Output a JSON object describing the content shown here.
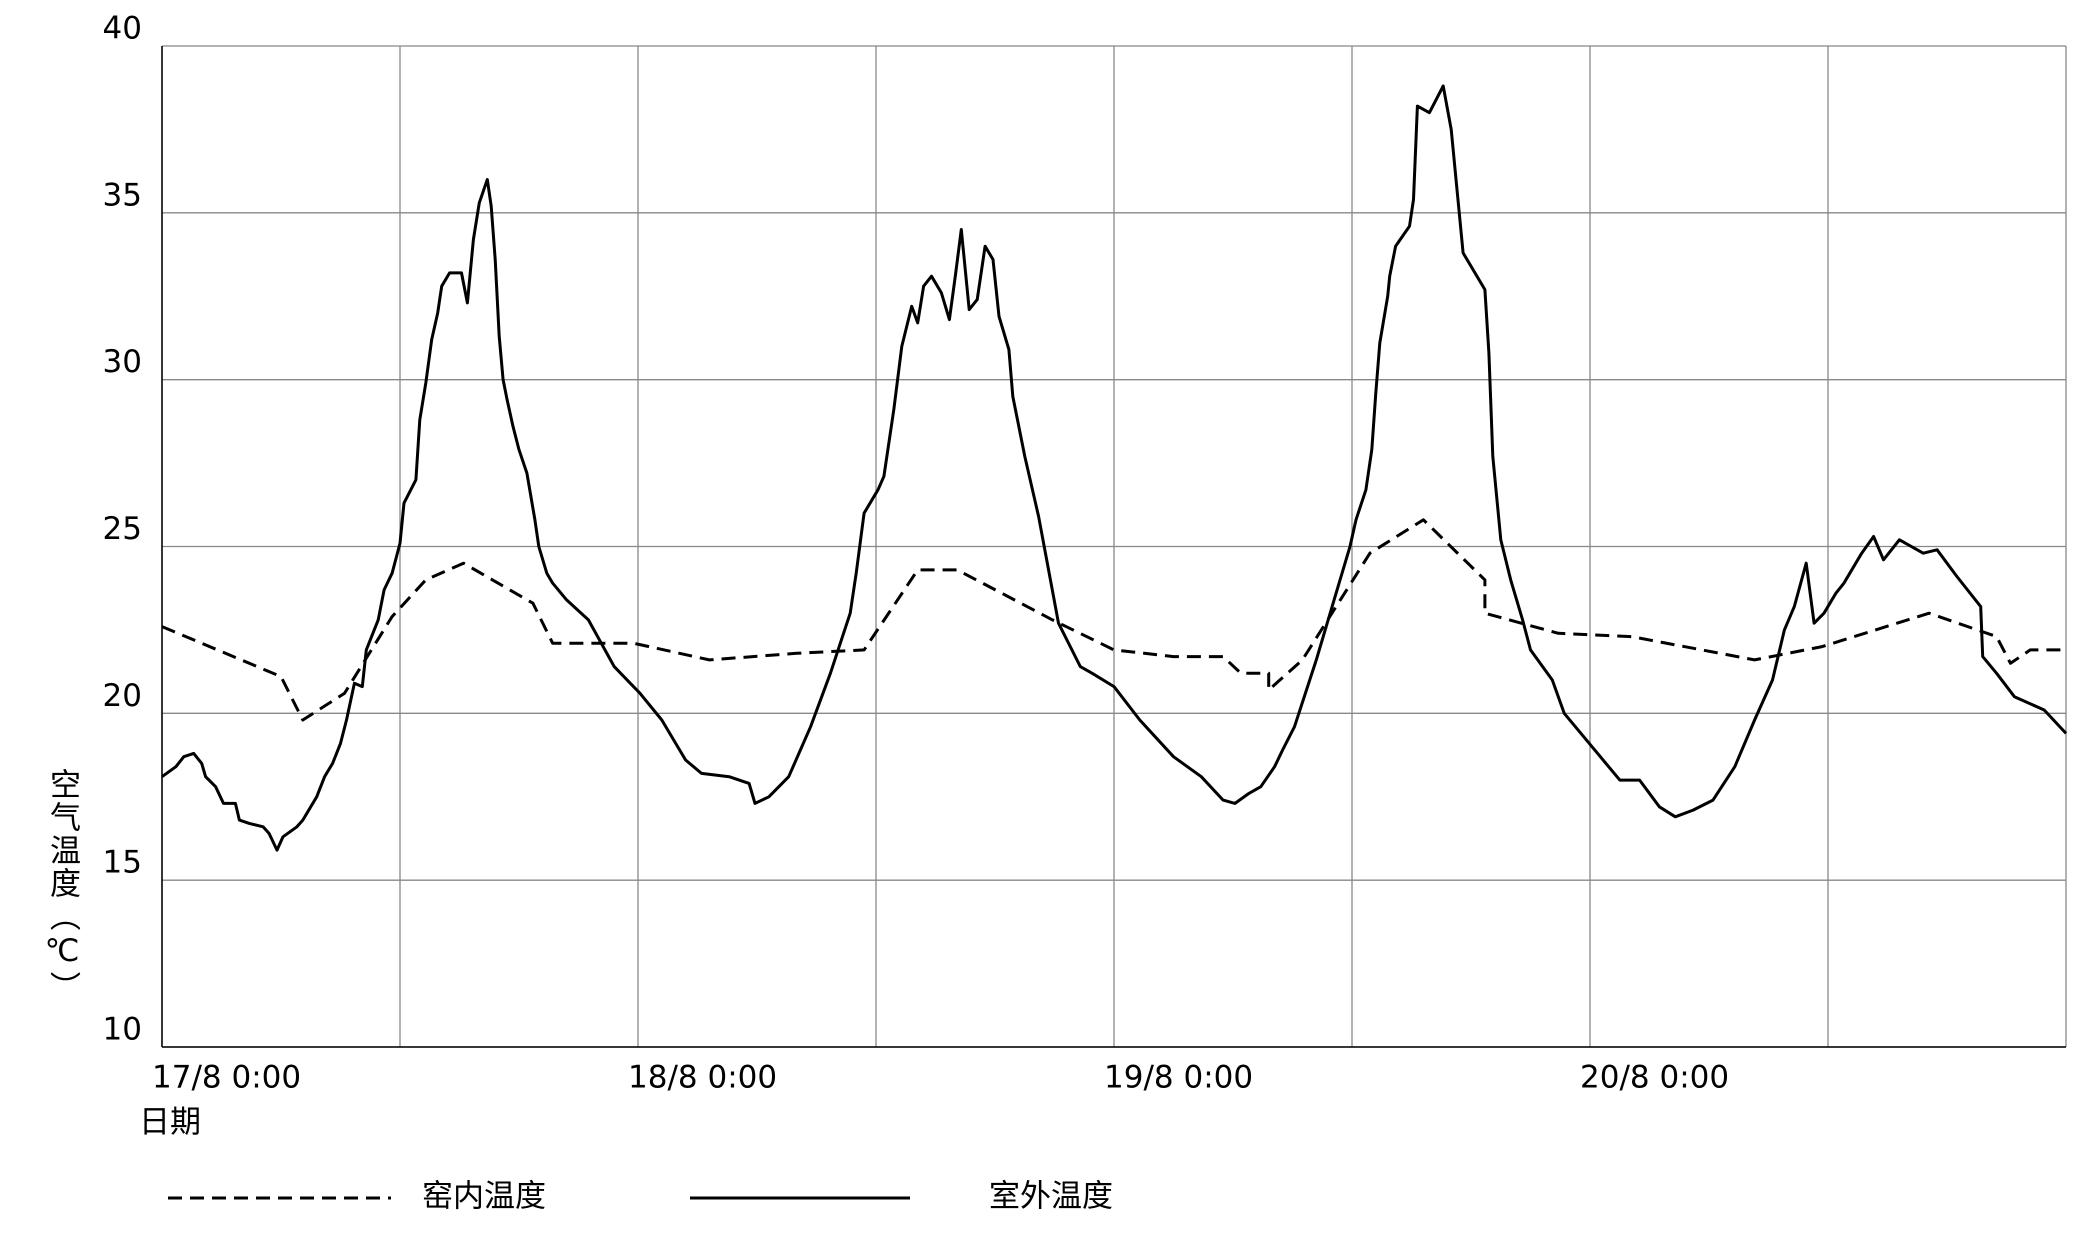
{
  "chart_data": {
    "type": "line",
    "x_label": "日期",
    "y_label": "空气温度（℃）",
    "xlim": [
      0,
      96
    ],
    "xticks": [
      {
        "value": 0,
        "label": "17/8 0:00"
      },
      {
        "value": 12,
        "label": null
      },
      {
        "value": 24,
        "label": "18/8 0:00"
      },
      {
        "value": 36,
        "label": null
      },
      {
        "value": 48,
        "label": "19/8 0:00"
      },
      {
        "value": 60,
        "label": null
      },
      {
        "value": 72,
        "label": "20/8 0:00"
      },
      {
        "value": 84,
        "label": null
      },
      {
        "value": 96,
        "label": null
      }
    ],
    "ylim": [
      10,
      40
    ],
    "yticks": [
      10,
      15,
      20,
      25,
      30,
      35,
      40
    ],
    "grid": true,
    "legend": "bottom",
    "series": [
      {
        "name": "窑内温度",
        "color": "#000000",
        "linestyle": "dashed",
        "x": [
          0,
          6.0,
          7.1,
          9.2,
          11.6,
          13.3,
          15.2,
          18.7,
          19.7,
          23.8,
          27.6,
          32.0,
          35.4,
          38.1,
          40.1,
          44.9,
          48.0,
          51.0,
          53.5,
          54.4,
          55.8,
          55.8,
          57.5,
          60.9,
          63.6,
          66.7,
          66.7,
          70.4,
          74.1,
          80.3,
          83.7,
          89.1,
          92.5,
          93.2,
          94.2,
          96.0
        ],
        "values": [
          22.6,
          21.1,
          19.8,
          20.6,
          22.9,
          24.0,
          24.5,
          23.3,
          22.1,
          22.1,
          21.6,
          21.8,
          21.9,
          24.3,
          24.3,
          22.8,
          21.9,
          21.7,
          21.7,
          21.2,
          21.2,
          20.7,
          21.6,
          24.8,
          25.8,
          24.0,
          23.0,
          22.4,
          22.3,
          21.6,
          22.0,
          23.0,
          22.3,
          21.5,
          21.9,
          21.9
        ]
      },
      {
        "name": "室外温度",
        "color": "#000000",
        "linestyle": "solid",
        "x": [
          0,
          0.7,
          1.1,
          1.6,
          2.0,
          2.2,
          2.7,
          3.1,
          3.7,
          3.9,
          4.4,
          5.1,
          5.4,
          5.8,
          6.1,
          6.8,
          7.1,
          7.8,
          8.2,
          8.6,
          9.0,
          9.3,
          9.7,
          10.1,
          10.3,
          10.9,
          11.2,
          11.6,
          12.0,
          12.2,
          12.8,
          13.0,
          13.3,
          13.6,
          13.9,
          14.1,
          14.5,
          15.1,
          15.4,
          15.7,
          16.0,
          16.4,
          16.6,
          16.8,
          17.0,
          17.2,
          17.4,
          17.7,
          18.0,
          18.4,
          18.8,
          19.0,
          19.4,
          19.7,
          20.4,
          21.5,
          22.8,
          24.1,
          25.2,
          26.4,
          27.2,
          28.6,
          29.6,
          29.9,
          30.6,
          31.6,
          32.7,
          33.7,
          34.7,
          35.0,
          35.4,
          36.1,
          36.4,
          36.9,
          37.3,
          37.8,
          38.1,
          38.4,
          38.8,
          39.3,
          39.7,
          40.0,
          40.3,
          40.7,
          41.1,
          41.5,
          41.9,
          42.2,
          42.7,
          42.9,
          43.5,
          44.2,
          45.2,
          46.3,
          46.9,
          48.0,
          49.3,
          51.0,
          52.4,
          53.5,
          54.1,
          54.8,
          55.4,
          56.1,
          56.5,
          57.1,
          58.2,
          59.2,
          59.9,
          60.2,
          60.7,
          61.0,
          61.2,
          61.4,
          61.8,
          61.9,
          62.2,
          62.9,
          63.1,
          63.3,
          63.9,
          64.6,
          65.0,
          65.6,
          66.7,
          66.9,
          67.1,
          67.5,
          68.0,
          68.6,
          69.0,
          70.1,
          70.7,
          72.1,
          73.5,
          74.5,
          75.5,
          76.3,
          77.2,
          78.2,
          79.3,
          80.3,
          81.2,
          81.8,
          82.3,
          82.9,
          83.3,
          83.8,
          84.4,
          84.8,
          85.7,
          86.3,
          86.8,
          87.6,
          88.8,
          89.5,
          90.5,
          91.7,
          91.8,
          92.5,
          93.4,
          94.9,
          96.0
        ],
        "values": [
          18.1,
          18.4,
          18.7,
          18.8,
          18.5,
          18.1,
          17.8,
          17.3,
          17.3,
          16.8,
          16.7,
          16.6,
          16.4,
          15.9,
          16.3,
          16.6,
          16.8,
          17.5,
          18.1,
          18.5,
          19.1,
          19.8,
          20.9,
          20.8,
          21.9,
          22.8,
          23.7,
          24.2,
          25.1,
          26.3,
          27.0,
          28.8,
          29.9,
          31.2,
          32.0,
          32.8,
          33.2,
          33.2,
          32.3,
          34.2,
          35.3,
          36.0,
          35.2,
          33.6,
          31.3,
          30.0,
          29.4,
          28.6,
          27.9,
          27.2,
          25.8,
          25.0,
          24.2,
          23.9,
          23.4,
          22.8,
          21.4,
          20.6,
          19.8,
          18.6,
          18.2,
          18.1,
          17.9,
          17.3,
          17.5,
          18.1,
          19.6,
          21.2,
          23.0,
          24.2,
          26.0,
          26.7,
          27.1,
          29.1,
          31.0,
          32.2,
          31.7,
          32.8,
          33.1,
          32.6,
          31.8,
          33.1,
          34.5,
          32.1,
          32.4,
          34.0,
          33.6,
          31.9,
          30.9,
          29.5,
          27.7,
          25.9,
          22.7,
          21.4,
          21.2,
          20.8,
          19.8,
          18.7,
          18.1,
          17.4,
          17.3,
          17.6,
          17.8,
          18.4,
          18.9,
          19.6,
          21.6,
          23.6,
          25.0,
          25.8,
          26.7,
          27.9,
          29.6,
          31.1,
          32.5,
          33.1,
          34.0,
          34.6,
          35.4,
          38.2,
          38.0,
          38.8,
          37.5,
          33.8,
          32.7,
          30.8,
          27.7,
          25.2,
          24.0,
          22.8,
          21.9,
          21.0,
          20.0,
          19.0,
          18.0,
          18.0,
          17.2,
          16.9,
          17.1,
          17.4,
          18.4,
          19.8,
          21.0,
          22.5,
          23.2,
          24.5,
          22.7,
          23.0,
          23.6,
          23.9,
          24.8,
          25.3,
          24.6,
          25.2,
          24.8,
          24.9,
          24.1,
          23.2,
          21.7,
          21.2,
          20.5,
          20.1,
          19.4
        ]
      }
    ]
  }
}
